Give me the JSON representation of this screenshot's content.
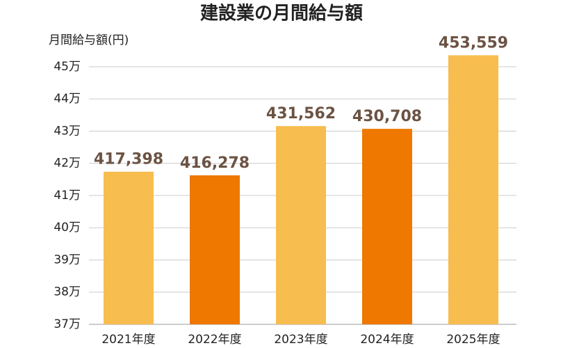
{
  "chart_data": {
    "type": "bar",
    "title": "建設業の月間給与額",
    "y_label": "月間給与額(円)",
    "categories": [
      "2021年度",
      "2022年度",
      "2023年度",
      "2024年度",
      "2025年度"
    ],
    "values": [
      417398,
      416278,
      431562,
      430708,
      453559
    ],
    "value_labels": [
      "417,398",
      "416,278",
      "431,562",
      "430,708",
      "453,559"
    ],
    "colors": [
      "#f7bd4f",
      "#ee7800",
      "#f7bd4f",
      "#ee7800",
      "#f7bd4f"
    ],
    "ylim": [
      370000,
      460000
    ],
    "yticks": [
      {
        "value": 370000,
        "label": "37万"
      },
      {
        "value": 380000,
        "label": "38万"
      },
      {
        "value": 390000,
        "label": "39万"
      },
      {
        "value": 400000,
        "label": "40万"
      },
      {
        "value": 410000,
        "label": "41万"
      },
      {
        "value": 420000,
        "label": "42万"
      },
      {
        "value": 430000,
        "label": "43万"
      },
      {
        "value": 440000,
        "label": "44万"
      },
      {
        "value": 450000,
        "label": "45万"
      }
    ],
    "grid": true
  }
}
